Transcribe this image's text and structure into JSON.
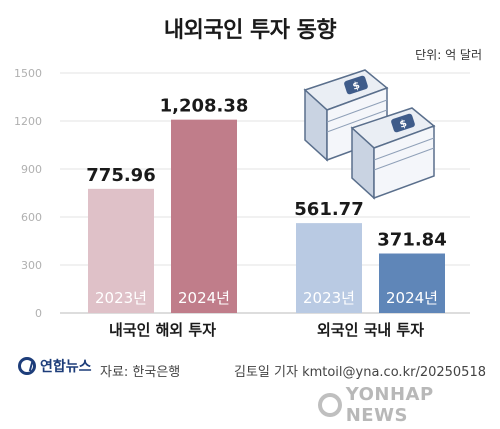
{
  "header": {
    "title": "내외국인 투자 동향",
    "unit": "단위: 억 달러"
  },
  "footer": {
    "brand": "연합뉴스",
    "source": "자료: 한국은행",
    "credit": "김토일 기자 kmtoil@yna.co.kr/20250518",
    "watermark": "YONHAP NEWS"
  },
  "icons": [
    "money-stack-icon",
    "money-stack-icon"
  ],
  "chart_data": {
    "type": "bar",
    "ylim": [
      0,
      1500
    ],
    "yticks": [
      0,
      300,
      600,
      900,
      1200,
      1500
    ],
    "yticks_labels": [
      "0",
      "300",
      "600",
      "900",
      "1200",
      "1500"
    ],
    "grid": true,
    "groups": [
      {
        "name": "내국인 해외 투자",
        "bars": [
          {
            "label": "2023년",
            "value": 775.96,
            "value_label": "775.96",
            "color": "#dfc1c8"
          },
          {
            "label": "2024년",
            "value": 1208.38,
            "value_label": "1,208.38",
            "color": "#c07d8a"
          }
        ]
      },
      {
        "name": "외국인 국내 투자",
        "bars": [
          {
            "label": "2023년",
            "value": 561.77,
            "value_label": "561.77",
            "color": "#b9cae3"
          },
          {
            "label": "2024년",
            "value": 371.84,
            "value_label": "371.84",
            "color": "#5f86b8"
          }
        ]
      }
    ]
  }
}
